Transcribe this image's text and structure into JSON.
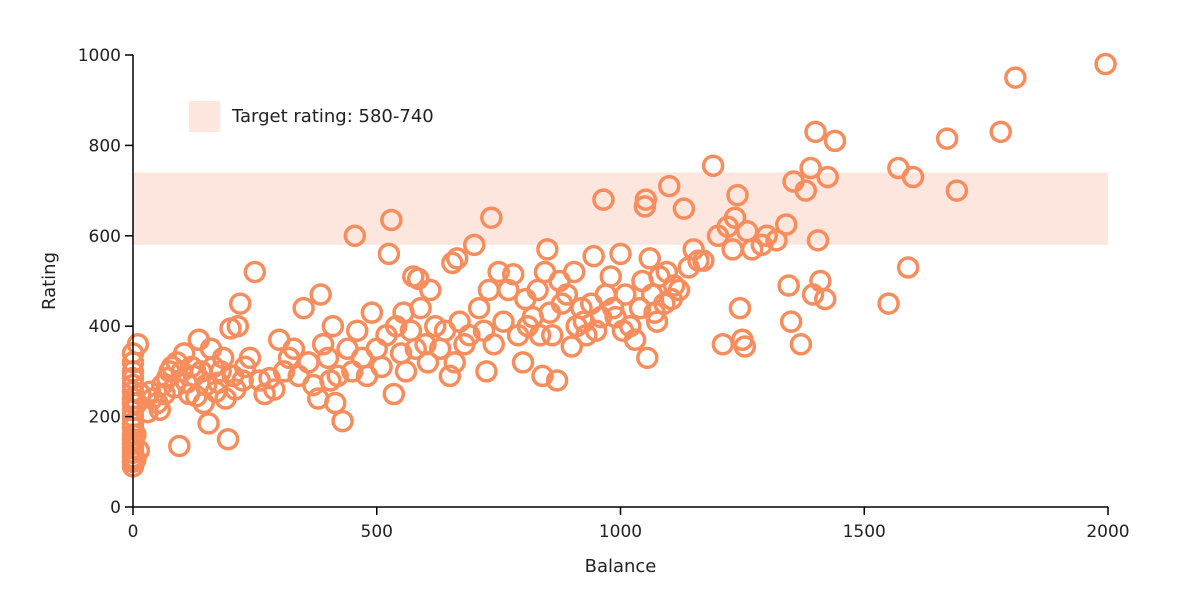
{
  "chart_data": {
    "type": "scatter",
    "xlabel": "Balance",
    "ylabel": "Rating",
    "xlim": [
      0,
      2000
    ],
    "ylim": [
      0,
      1000
    ],
    "xticks": [
      0,
      500,
      1000,
      1500,
      2000
    ],
    "yticks": [
      0,
      200,
      400,
      600,
      800,
      1000
    ],
    "grid": false,
    "band": {
      "label": "Target rating: 580-740",
      "y0": 580,
      "y1": 740,
      "color": "#fde6de"
    },
    "marker": {
      "style": "hollow-circle",
      "color": "#f78c5c"
    },
    "legend_placement": "top-left",
    "points": [
      [
        0,
        90
      ],
      [
        0,
        100
      ],
      [
        0,
        110
      ],
      [
        0,
        120
      ],
      [
        0,
        130
      ],
      [
        0,
        140
      ],
      [
        0,
        150
      ],
      [
        0,
        160
      ],
      [
        0,
        175
      ],
      [
        0,
        185
      ],
      [
        0,
        200
      ],
      [
        0,
        215
      ],
      [
        0,
        230
      ],
      [
        0,
        240
      ],
      [
        0,
        255
      ],
      [
        0,
        270
      ],
      [
        0,
        285
      ],
      [
        0,
        300
      ],
      [
        0,
        320
      ],
      [
        0,
        340
      ],
      [
        5,
        105
      ],
      [
        5,
        160
      ],
      [
        8,
        230
      ],
      [
        10,
        360
      ],
      [
        12,
        125
      ],
      [
        15,
        250
      ],
      [
        30,
        210
      ],
      [
        35,
        255
      ],
      [
        40,
        240
      ],
      [
        50,
        230
      ],
      [
        55,
        215
      ],
      [
        60,
        270
      ],
      [
        65,
        250
      ],
      [
        70,
        285
      ],
      [
        75,
        300
      ],
      [
        80,
        310
      ],
      [
        85,
        265
      ],
      [
        90,
        320
      ],
      [
        95,
        135
      ],
      [
        100,
        300
      ],
      [
        105,
        340
      ],
      [
        110,
        275
      ],
      [
        115,
        250
      ],
      [
        120,
        310
      ],
      [
        125,
        290
      ],
      [
        130,
        245
      ],
      [
        135,
        370
      ],
      [
        140,
        300
      ],
      [
        145,
        230
      ],
      [
        150,
        270
      ],
      [
        155,
        185
      ],
      [
        160,
        350
      ],
      [
        165,
        310
      ],
      [
        170,
        255
      ],
      [
        175,
        275
      ],
      [
        180,
        300
      ],
      [
        185,
        330
      ],
      [
        190,
        240
      ],
      [
        195,
        150
      ],
      [
        200,
        395
      ],
      [
        205,
        290
      ],
      [
        210,
        260
      ],
      [
        215,
        400
      ],
      [
        220,
        450
      ],
      [
        225,
        280
      ],
      [
        230,
        310
      ],
      [
        240,
        330
      ],
      [
        250,
        520
      ],
      [
        260,
        280
      ],
      [
        270,
        250
      ],
      [
        280,
        285
      ],
      [
        290,
        260
      ],
      [
        300,
        370
      ],
      [
        310,
        300
      ],
      [
        320,
        330
      ],
      [
        330,
        350
      ],
      [
        340,
        290
      ],
      [
        350,
        440
      ],
      [
        360,
        320
      ],
      [
        370,
        270
      ],
      [
        380,
        240
      ],
      [
        385,
        470
      ],
      [
        390,
        360
      ],
      [
        400,
        330
      ],
      [
        405,
        280
      ],
      [
        410,
        400
      ],
      [
        415,
        230
      ],
      [
        420,
        290
      ],
      [
        430,
        190
      ],
      [
        440,
        350
      ],
      [
        450,
        300
      ],
      [
        455,
        600
      ],
      [
        460,
        390
      ],
      [
        470,
        330
      ],
      [
        480,
        290
      ],
      [
        490,
        430
      ],
      [
        500,
        350
      ],
      [
        510,
        310
      ],
      [
        520,
        380
      ],
      [
        525,
        560
      ],
      [
        530,
        635
      ],
      [
        535,
        250
      ],
      [
        540,
        400
      ],
      [
        550,
        340
      ],
      [
        555,
        430
      ],
      [
        560,
        300
      ],
      [
        570,
        390
      ],
      [
        575,
        510
      ],
      [
        580,
        350
      ],
      [
        585,
        505
      ],
      [
        590,
        440
      ],
      [
        600,
        360
      ],
      [
        605,
        320
      ],
      [
        610,
        480
      ],
      [
        620,
        400
      ],
      [
        630,
        350
      ],
      [
        640,
        390
      ],
      [
        650,
        290
      ],
      [
        655,
        540
      ],
      [
        660,
        320
      ],
      [
        665,
        550
      ],
      [
        670,
        410
      ],
      [
        680,
        360
      ],
      [
        690,
        380
      ],
      [
        700,
        580
      ],
      [
        710,
        440
      ],
      [
        720,
        390
      ],
      [
        725,
        300
      ],
      [
        730,
        480
      ],
      [
        735,
        640
      ],
      [
        740,
        360
      ],
      [
        750,
        520
      ],
      [
        760,
        410
      ],
      [
        770,
        480
      ],
      [
        780,
        515
      ],
      [
        790,
        380
      ],
      [
        800,
        320
      ],
      [
        805,
        460
      ],
      [
        810,
        400
      ],
      [
        820,
        420
      ],
      [
        830,
        480
      ],
      [
        835,
        380
      ],
      [
        840,
        290
      ],
      [
        845,
        520
      ],
      [
        850,
        570
      ],
      [
        855,
        430
      ],
      [
        860,
        380
      ],
      [
        870,
        280
      ],
      [
        875,
        500
      ],
      [
        880,
        450
      ],
      [
        890,
        470
      ],
      [
        900,
        355
      ],
      [
        905,
        520
      ],
      [
        910,
        400
      ],
      [
        920,
        440
      ],
      [
        925,
        410
      ],
      [
        930,
        380
      ],
      [
        940,
        450
      ],
      [
        945,
        555
      ],
      [
        950,
        390
      ],
      [
        960,
        420
      ],
      [
        965,
        680
      ],
      [
        970,
        470
      ],
      [
        980,
        510
      ],
      [
        985,
        440
      ],
      [
        990,
        420
      ],
      [
        1000,
        560
      ],
      [
        1005,
        390
      ],
      [
        1010,
        470
      ],
      [
        1020,
        400
      ],
      [
        1030,
        370
      ],
      [
        1040,
        440
      ],
      [
        1045,
        500
      ],
      [
        1050,
        665
      ],
      [
        1052,
        680
      ],
      [
        1055,
        330
      ],
      [
        1060,
        550
      ],
      [
        1065,
        470
      ],
      [
        1070,
        430
      ],
      [
        1075,
        410
      ],
      [
        1080,
        510
      ],
      [
        1090,
        450
      ],
      [
        1095,
        520
      ],
      [
        1100,
        710
      ],
      [
        1105,
        460
      ],
      [
        1110,
        490
      ],
      [
        1120,
        480
      ],
      [
        1130,
        660
      ],
      [
        1140,
        530
      ],
      [
        1150,
        570
      ],
      [
        1160,
        545
      ],
      [
        1170,
        545
      ],
      [
        1190,
        755
      ],
      [
        1200,
        600
      ],
      [
        1210,
        360
      ],
      [
        1220,
        620
      ],
      [
        1230,
        570
      ],
      [
        1235,
        640
      ],
      [
        1240,
        690
      ],
      [
        1245,
        440
      ],
      [
        1250,
        370
      ],
      [
        1255,
        355
      ],
      [
        1260,
        610
      ],
      [
        1270,
        570
      ],
      [
        1290,
        580
      ],
      [
        1300,
        600
      ],
      [
        1320,
        590
      ],
      [
        1340,
        625
      ],
      [
        1345,
        490
      ],
      [
        1350,
        410
      ],
      [
        1355,
        720
      ],
      [
        1370,
        360
      ],
      [
        1380,
        700
      ],
      [
        1390,
        750
      ],
      [
        1395,
        470
      ],
      [
        1400,
        830
      ],
      [
        1405,
        590
      ],
      [
        1410,
        500
      ],
      [
        1420,
        460
      ],
      [
        1425,
        730
      ],
      [
        1440,
        810
      ],
      [
        1550,
        450
      ],
      [
        1570,
        750
      ],
      [
        1590,
        530
      ],
      [
        1600,
        730
      ],
      [
        1670,
        815
      ],
      [
        1690,
        700
      ],
      [
        1780,
        830
      ],
      [
        1810,
        950
      ],
      [
        1995,
        980
      ]
    ]
  }
}
